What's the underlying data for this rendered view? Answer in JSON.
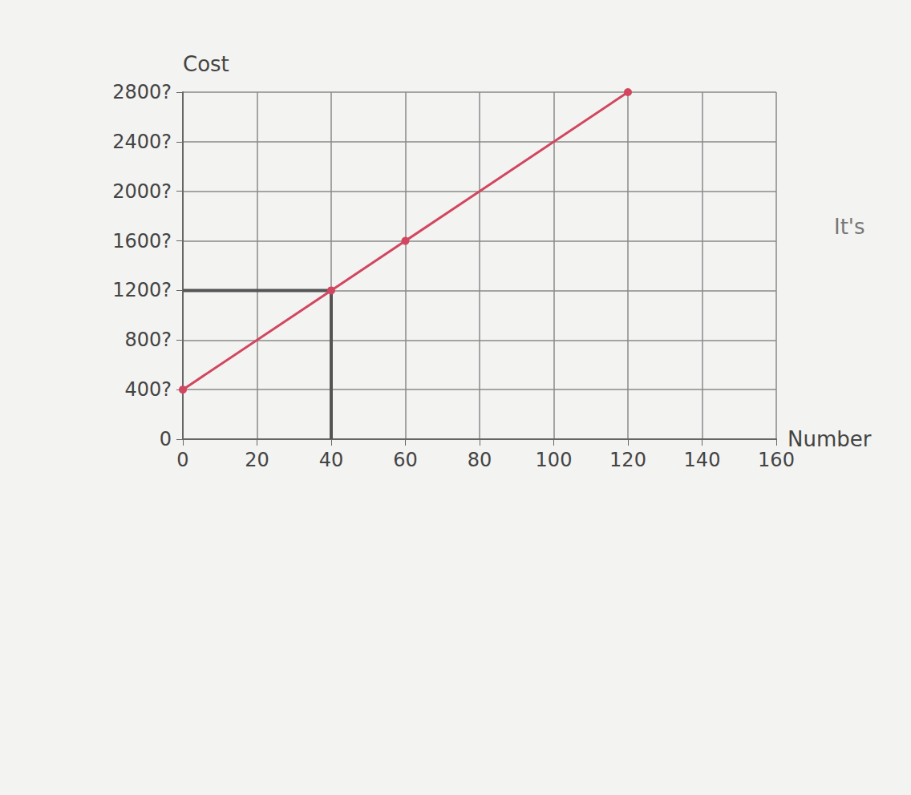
{
  "chart_data": {
    "type": "line",
    "y_label": "Cost",
    "x_label": "Number",
    "annotations": [
      "It's"
    ],
    "xlim": [
      0,
      160
    ],
    "xticks": [
      0,
      20,
      40,
      60,
      80,
      100,
      120,
      140,
      160
    ],
    "ylim": [
      0,
      2800
    ],
    "yticks": [
      0,
      {
        "value": 400,
        "label": "400?"
      },
      {
        "value": 800,
        "label": "800?"
      },
      {
        "value": 1200,
        "label": "1200?"
      },
      {
        "value": 1600,
        "label": "1600?"
      },
      {
        "value": 2000,
        "label": "2000?"
      },
      {
        "value": 2400,
        "label": "2400?"
      },
      {
        "value": 2800,
        "label": "2800?"
      }
    ],
    "grid": true,
    "series": [
      {
        "color": "#d2465f",
        "marker": "circle",
        "line_style": "solid",
        "x": [
          0,
          40,
          60,
          120
        ],
        "values": [
          400,
          1200,
          1600,
          2800
        ]
      },
      {
        "color": "#555555",
        "marker": "none",
        "line_style": "solid",
        "x": [
          0,
          40,
          40
        ],
        "values": [
          1200,
          1200,
          0
        ]
      }
    ]
  }
}
